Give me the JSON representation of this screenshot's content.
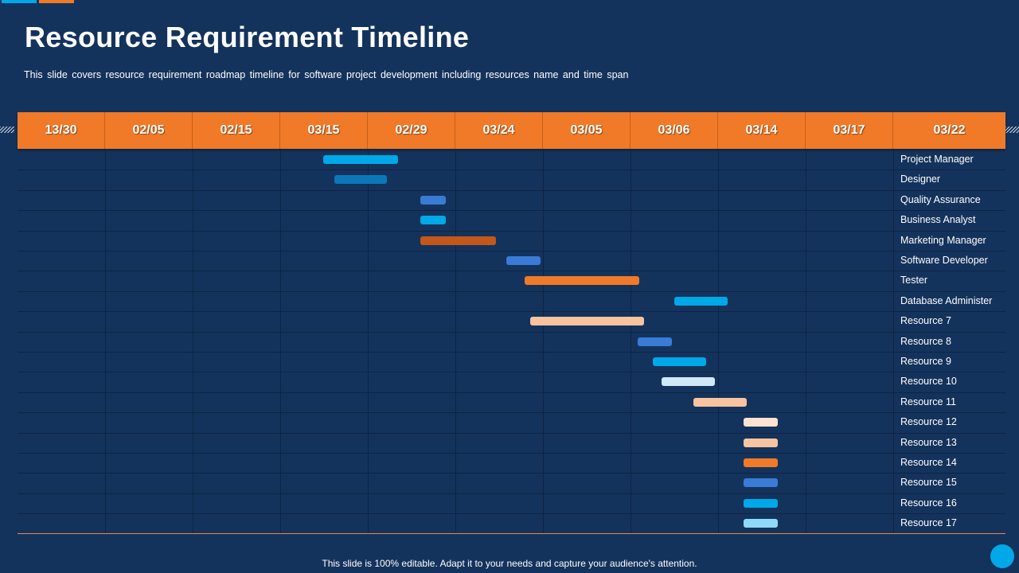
{
  "title": "Resource Requirement Timeline",
  "subtitle": "This slide covers resource requirement roadmap timeline for software project development  including resources name and time span",
  "footer": "This slide is 100% editable. Adapt it to your needs and capture your audience's attention.",
  "columns": [
    "13/30",
    "02/05",
    "02/15",
    "03/15",
    "02/29",
    "03/24",
    "03/05",
    "03/06",
    "03/14",
    "03/17",
    "03/22"
  ],
  "colors": {
    "background": "#14335c",
    "header": "#f07a28",
    "bar_blue_bright": "#00a8e8",
    "bar_blue_dark": "#0a78b8",
    "bar_blue_mid": "#3a7bd5",
    "bar_orange_dark": "#c4571a",
    "bar_orange": "#f07a28",
    "bar_peach": "#f8c4a0",
    "bar_peach_light": "#fde3d0",
    "bar_ice": "#cfe9f7",
    "bar_sky": "#8fd8f8"
  },
  "resources": [
    {
      "name": "Project Manager",
      "start_col": 3.49,
      "end_col": 4.35,
      "color": "#00a8e8"
    },
    {
      "name": "Designer",
      "start_col": 3.62,
      "end_col": 4.22,
      "color": "#0a78b8"
    },
    {
      "name": "Quality Assurance",
      "start_col": 4.6,
      "end_col": 4.89,
      "color": "#3a7bd5"
    },
    {
      "name": "Business Analyst",
      "start_col": 4.6,
      "end_col": 4.89,
      "color": "#00a8e8"
    },
    {
      "name": "Marketing Manager",
      "start_col": 4.6,
      "end_col": 5.46,
      "color": "#c4571a"
    },
    {
      "name": "Software Developer",
      "start_col": 5.58,
      "end_col": 5.97,
      "color": "#3a7bd5"
    },
    {
      "name": "Tester",
      "start_col": 5.79,
      "end_col": 7.1,
      "color": "#f07a28"
    },
    {
      "name": "Database Administer",
      "start_col": 7.5,
      "end_col": 8.11,
      "color": "#00a8e8"
    },
    {
      "name": "Resource 7",
      "start_col": 5.85,
      "end_col": 7.15,
      "color": "#f8c4a0"
    },
    {
      "name": "Resource 8",
      "start_col": 7.08,
      "end_col": 7.47,
      "color": "#3a7bd5"
    },
    {
      "name": "Resource 9",
      "start_col": 7.25,
      "end_col": 7.86,
      "color": "#00a8e8"
    },
    {
      "name": "Resource 10",
      "start_col": 7.35,
      "end_col": 7.96,
      "color": "#cfe9f7"
    },
    {
      "name": "Resource 11",
      "start_col": 7.72,
      "end_col": 8.33,
      "color": "#f8c4a0"
    },
    {
      "name": "Resource 12",
      "start_col": 8.29,
      "end_col": 8.68,
      "color": "#fde3d0"
    },
    {
      "name": "Resource 13",
      "start_col": 8.29,
      "end_col": 8.68,
      "color": "#f8c4a0"
    },
    {
      "name": "Resource 14",
      "start_col": 8.29,
      "end_col": 8.68,
      "color": "#f07a28"
    },
    {
      "name": "Resource 15",
      "start_col": 8.29,
      "end_col": 8.68,
      "color": "#3a7bd5"
    },
    {
      "name": "Resource 16",
      "start_col": 8.29,
      "end_col": 8.68,
      "color": "#00a8e8"
    },
    {
      "name": "Resource 17",
      "start_col": 8.29,
      "end_col": 8.68,
      "color": "#8fd8f8"
    }
  ]
}
